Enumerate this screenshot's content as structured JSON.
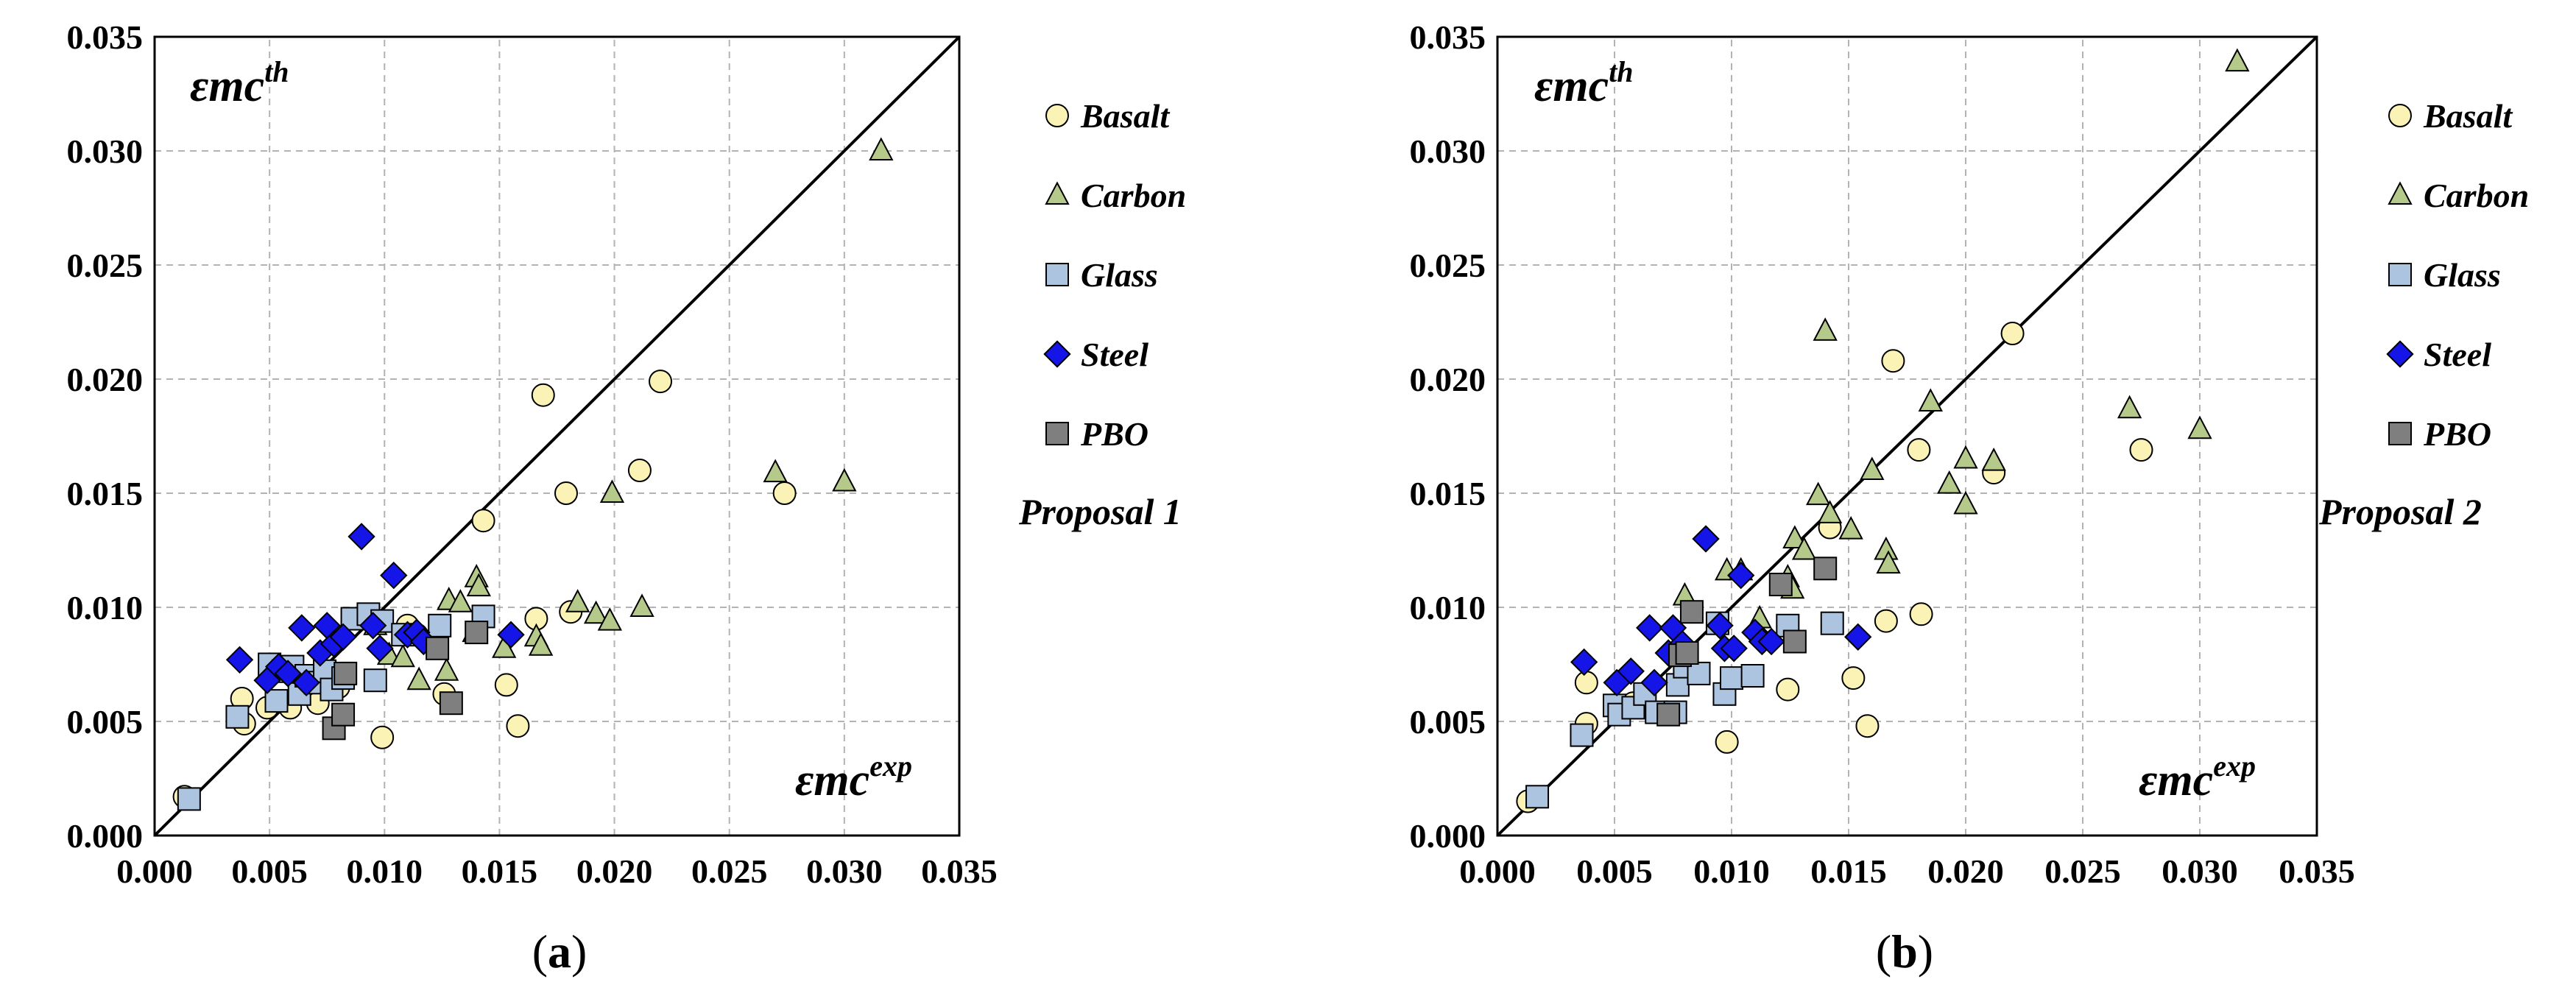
{
  "colors": {
    "Basalt": "#fbf3b6",
    "Carbon": "#b5c98a",
    "Glass": "#adc4e0",
    "Steel": "#1515e8",
    "PBO": "#7f7f7f",
    "grid": "#b3b3b3"
  },
  "chart_data": [
    {
      "type": "scatter",
      "panel": "a",
      "caption_left": "(",
      "caption_letter": "a",
      "caption_right": ")",
      "proposal_label": "Proposal 1",
      "ylabel_main": "εmc",
      "ylabel_sup": "th",
      "xlabel_main": "εmc",
      "xlabel_sup": "exp",
      "xlim": [
        0,
        0.035
      ],
      "ylim": [
        0,
        0.035
      ],
      "ticks": [
        "0.000",
        "0.005",
        "0.010",
        "0.015",
        "0.020",
        "0.025",
        "0.030",
        "0.035"
      ],
      "reference_line": "y = x",
      "legend": [
        "Basalt",
        "Carbon",
        "Glass",
        "Steel",
        "PBO"
      ],
      "series": [
        {
          "name": "Basalt",
          "marker": "circle",
          "points": [
            [
              0.0013,
              0.0017
            ],
            [
              0.0039,
              0.0049
            ],
            [
              0.0038,
              0.006
            ],
            [
              0.0049,
              0.0056
            ],
            [
              0.0059,
              0.0056
            ],
            [
              0.0071,
              0.0058
            ],
            [
              0.008,
              0.0065
            ],
            [
              0.0099,
              0.0043
            ],
            [
              0.011,
              0.0092
            ],
            [
              0.0114,
              0.0088
            ],
            [
              0.0126,
              0.0062
            ],
            [
              0.0143,
              0.0138
            ],
            [
              0.0153,
              0.0066
            ],
            [
              0.0158,
              0.0048
            ],
            [
              0.0166,
              0.0095
            ],
            [
              0.0169,
              0.0193
            ],
            [
              0.0179,
              0.015
            ],
            [
              0.0181,
              0.0098
            ],
            [
              0.0211,
              0.016
            ],
            [
              0.022,
              0.0199
            ],
            [
              0.0274,
              0.015
            ]
          ]
        },
        {
          "name": "Carbon",
          "marker": "triangle",
          "points": [
            [
              0.0096,
              0.0092
            ],
            [
              0.0102,
              0.0079
            ],
            [
              0.0108,
              0.0078
            ],
            [
              0.0115,
              0.0068
            ],
            [
              0.0127,
              0.0072
            ],
            [
              0.0128,
              0.0103
            ],
            [
              0.0133,
              0.0102
            ],
            [
              0.0139,
              0.0089
            ],
            [
              0.014,
              0.0113
            ],
            [
              0.0141,
              0.0109
            ],
            [
              0.0152,
              0.0082
            ],
            [
              0.0166,
              0.0087
            ],
            [
              0.0168,
              0.0083
            ],
            [
              0.0184,
              0.0102
            ],
            [
              0.0192,
              0.0097
            ],
            [
              0.0198,
              0.0094
            ],
            [
              0.0199,
              0.015
            ],
            [
              0.0212,
              0.01
            ],
            [
              0.027,
              0.0159
            ],
            [
              0.03,
              0.0155
            ],
            [
              0.0316,
              0.03
            ]
          ]
        },
        {
          "name": "Glass",
          "marker": "square",
          "points": [
            [
              0.0015,
              0.0016
            ],
            [
              0.0036,
              0.0052
            ],
            [
              0.005,
              0.0075
            ],
            [
              0.0053,
              0.0059
            ],
            [
              0.0056,
              0.0072
            ],
            [
              0.006,
              0.0074
            ],
            [
              0.0063,
              0.0062
            ],
            [
              0.0066,
              0.007
            ],
            [
              0.007,
              0.0067
            ],
            [
              0.0074,
              0.0072
            ],
            [
              0.0077,
              0.0064
            ],
            [
              0.0082,
              0.0069
            ],
            [
              0.0086,
              0.0095
            ],
            [
              0.0093,
              0.0097
            ],
            [
              0.0096,
              0.0068
            ],
            [
              0.0099,
              0.0094
            ],
            [
              0.0108,
              0.0088
            ],
            [
              0.0124,
              0.0092
            ],
            [
              0.0143,
              0.0096
            ]
          ]
        },
        {
          "name": "Steel",
          "marker": "diamond",
          "points": [
            [
              0.0037,
              0.0077
            ],
            [
              0.0049,
              0.0068
            ],
            [
              0.0054,
              0.0074
            ],
            [
              0.0058,
              0.0071
            ],
            [
              0.0064,
              0.0091
            ],
            [
              0.0066,
              0.0067
            ],
            [
              0.0072,
              0.008
            ],
            [
              0.0075,
              0.0092
            ],
            [
              0.0078,
              0.0084
            ],
            [
              0.0082,
              0.0087
            ],
            [
              0.009,
              0.0131
            ],
            [
              0.0095,
              0.0092
            ],
            [
              0.0098,
              0.0082
            ],
            [
              0.0104,
              0.0114
            ],
            [
              0.011,
              0.0088
            ],
            [
              0.0114,
              0.0089
            ],
            [
              0.0117,
              0.0085
            ],
            [
              0.0155,
              0.0088
            ]
          ]
        },
        {
          "name": "PBO",
          "marker": "square",
          "points": [
            [
              0.0078,
              0.0047
            ],
            [
              0.0082,
              0.0053
            ],
            [
              0.0083,
              0.0071
            ],
            [
              0.0123,
              0.0082
            ],
            [
              0.0129,
              0.0058
            ],
            [
              0.014,
              0.0089
            ]
          ]
        }
      ]
    },
    {
      "type": "scatter",
      "panel": "b",
      "caption_left": "(",
      "caption_letter": "b",
      "caption_right": ")",
      "proposal_label": "Proposal 2",
      "ylabel_main": "εmc",
      "ylabel_sup": "th",
      "xlabel_main": "εmc",
      "xlabel_sup": "exp",
      "xlim": [
        0,
        0.035
      ],
      "ylim": [
        0,
        0.035
      ],
      "ticks": [
        "0.000",
        "0.005",
        "0.010",
        "0.015",
        "0.020",
        "0.025",
        "0.030",
        "0.035"
      ],
      "reference_line": "y = x",
      "legend": [
        "Basalt",
        "Carbon",
        "Glass",
        "Steel",
        "PBO"
      ],
      "series": [
        {
          "name": "Basalt",
          "marker": "circle",
          "points": [
            [
              0.0013,
              0.0015
            ],
            [
              0.0038,
              0.0067
            ],
            [
              0.0038,
              0.0049
            ],
            [
              0.005,
              0.0057
            ],
            [
              0.0058,
              0.0058
            ],
            [
              0.0098,
              0.0041
            ],
            [
              0.0124,
              0.0064
            ],
            [
              0.0142,
              0.0135
            ],
            [
              0.0152,
              0.0069
            ],
            [
              0.0158,
              0.0048
            ],
            [
              0.0166,
              0.0094
            ],
            [
              0.0169,
              0.0208
            ],
            [
              0.018,
              0.0169
            ],
            [
              0.0181,
              0.0097
            ],
            [
              0.0212,
              0.0159
            ],
            [
              0.022,
              0.022
            ],
            [
              0.0275,
              0.0169
            ]
          ]
        },
        {
          "name": "Carbon",
          "marker": "triangle",
          "points": [
            [
              0.008,
              0.0105
            ],
            [
              0.0098,
              0.0116
            ],
            [
              0.0104,
              0.0116
            ],
            [
              0.0112,
              0.0095
            ],
            [
              0.0124,
              0.0113
            ],
            [
              0.0126,
              0.0108
            ],
            [
              0.0127,
              0.013
            ],
            [
              0.0131,
              0.0125
            ],
            [
              0.0137,
              0.0149
            ],
            [
              0.014,
              0.0221
            ],
            [
              0.0142,
              0.0141
            ],
            [
              0.0151,
              0.0134
            ],
            [
              0.016,
              0.016
            ],
            [
              0.0166,
              0.0125
            ],
            [
              0.0167,
              0.0119
            ],
            [
              0.0185,
              0.019
            ],
            [
              0.0193,
              0.0154
            ],
            [
              0.02,
              0.0165
            ],
            [
              0.02,
              0.0145
            ],
            [
              0.0212,
              0.0164
            ],
            [
              0.027,
              0.0187
            ],
            [
              0.03,
              0.0178
            ],
            [
              0.0316,
              0.0339
            ]
          ]
        },
        {
          "name": "Glass",
          "marker": "square",
          "points": [
            [
              0.0017,
              0.0017
            ],
            [
              0.0036,
              0.0044
            ],
            [
              0.005,
              0.0057
            ],
            [
              0.0052,
              0.0053
            ],
            [
              0.0058,
              0.0056
            ],
            [
              0.0063,
              0.0062
            ],
            [
              0.0068,
              0.0054
            ],
            [
              0.0076,
              0.0054
            ],
            [
              0.0077,
              0.0066
            ],
            [
              0.008,
              0.0074
            ],
            [
              0.0086,
              0.0071
            ],
            [
              0.0094,
              0.0093
            ],
            [
              0.0097,
              0.0062
            ],
            [
              0.01,
              0.0069
            ],
            [
              0.0109,
              0.007
            ],
            [
              0.0124,
              0.0092
            ],
            [
              0.0143,
              0.0093
            ]
          ]
        },
        {
          "name": "Steel",
          "marker": "diamond",
          "points": [
            [
              0.0037,
              0.0076
            ],
            [
              0.0051,
              0.0067
            ],
            [
              0.0057,
              0.0072
            ],
            [
              0.0065,
              0.0091
            ],
            [
              0.0067,
              0.0067
            ],
            [
              0.0073,
              0.008
            ],
            [
              0.0075,
              0.0091
            ],
            [
              0.0079,
              0.0084
            ],
            [
              0.0089,
              0.013
            ],
            [
              0.0095,
              0.0092
            ],
            [
              0.0097,
              0.0082
            ],
            [
              0.0101,
              0.0082
            ],
            [
              0.0104,
              0.0114
            ],
            [
              0.011,
              0.0089
            ],
            [
              0.0113,
              0.0085
            ],
            [
              0.0117,
              0.0085
            ],
            [
              0.0154,
              0.0087
            ]
          ]
        },
        {
          "name": "PBO",
          "marker": "square",
          "points": [
            [
              0.0073,
              0.0053
            ],
            [
              0.0078,
              0.0079
            ],
            [
              0.0081,
              0.008
            ],
            [
              0.0083,
              0.0098
            ],
            [
              0.0121,
              0.011
            ],
            [
              0.0127,
              0.0085
            ],
            [
              0.014,
              0.0117
            ]
          ]
        }
      ]
    }
  ]
}
